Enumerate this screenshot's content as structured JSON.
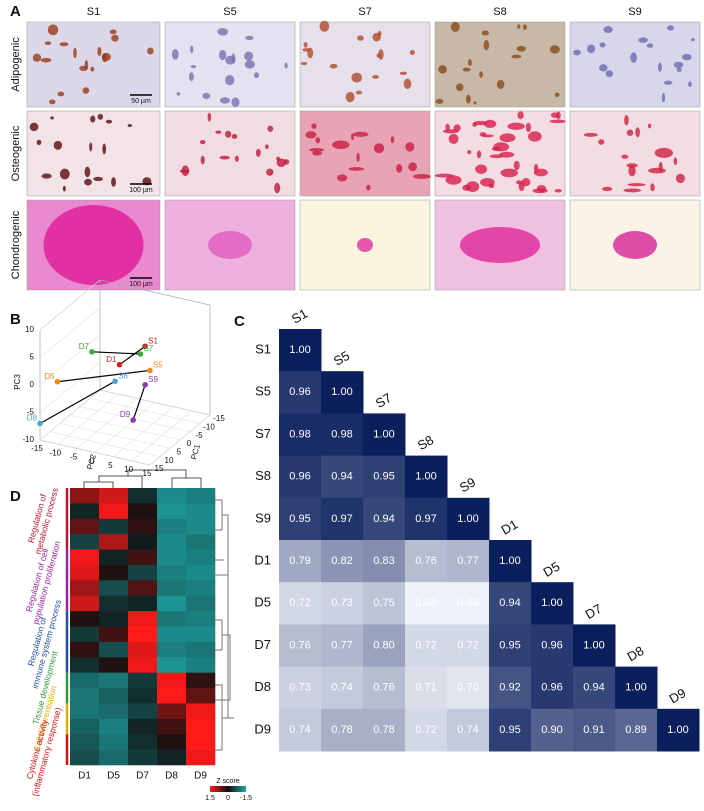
{
  "panel_a": {
    "label": "A",
    "columns": [
      "S1",
      "S5",
      "S7",
      "S8",
      "S9"
    ],
    "rows": [
      "Adipogenic",
      "Osteogenic",
      "Chondrogenic"
    ],
    "scale_bars": [
      "50 µm",
      "100 µm",
      "100 µm"
    ]
  },
  "panel_b": {
    "label": "B",
    "x_label": "PC2",
    "y_label": "PC1",
    "z_label": "PC3",
    "xlim": [
      -15,
      15
    ],
    "xticks": [
      -15,
      -10,
      -5,
      0,
      5,
      10,
      15
    ],
    "ylim": [
      -15,
      15
    ],
    "yticks": [
      15,
      10,
      5,
      0,
      -5,
      -10,
      -15
    ],
    "zlim": [
      -10,
      10
    ],
    "zticks": [
      10,
      5,
      0,
      -5,
      -10
    ],
    "points": [
      {
        "name": "S1",
        "color": "#d62020",
        "pc1": 0,
        "pc2": 5.5,
        "pc3": 5.6
      },
      {
        "name": "S5",
        "color": "#f08a1c",
        "pc1": 0,
        "pc2": 6.8,
        "pc3": 1.4
      },
      {
        "name": "S7",
        "color": "#3aa83a",
        "pc1": 0,
        "pc2": 4.2,
        "pc3": 4
      },
      {
        "name": "S8",
        "color": "#4aa3d8",
        "pc1": 0,
        "pc2": -2.7,
        "pc3": -2
      },
      {
        "name": "S9",
        "color": "#8a3cb0",
        "pc1": 0,
        "pc2": 5.5,
        "pc3": -1.4
      },
      {
        "name": "D1",
        "color": "#d62020",
        "pc1": 0,
        "pc2": -1.5,
        "pc3": 1.2
      },
      {
        "name": "D5",
        "color": "#f08a1c",
        "pc1": 9,
        "pc2": -13.5,
        "pc3": -1
      },
      {
        "name": "D7",
        "color": "#3aa83a",
        "pc1": 0,
        "pc2": -9,
        "pc3": 2.4
      },
      {
        "name": "D8",
        "color": "#4aa3d8",
        "pc1": 15,
        "pc2": -15,
        "pc3": -7
      },
      {
        "name": "D9",
        "color": "#8a3cb0",
        "pc1": 6,
        "pc2": 5.5,
        "pc3": -6
      }
    ]
  },
  "panel_c": {
    "label": "C",
    "labels": [
      "S1",
      "S5",
      "S7",
      "S8",
      "S9",
      "D1",
      "D5",
      "D7",
      "D8",
      "D9"
    ],
    "color_low": "#eef2f8",
    "color_high": "#0b1f5c",
    "values": [
      [
        1
      ],
      [
        0.96,
        1
      ],
      [
        0.98,
        0.98,
        1
      ],
      [
        0.96,
        0.94,
        0.95,
        1
      ],
      [
        0.95,
        0.97,
        0.94,
        0.97,
        1
      ],
      [
        0.79,
        0.82,
        0.83,
        0.76,
        0.77,
        1
      ],
      [
        0.72,
        0.73,
        0.75,
        0.68,
        0.68,
        0.94,
        1
      ],
      [
        0.76,
        0.77,
        0.8,
        0.72,
        0.72,
        0.95,
        0.96,
        1
      ],
      [
        0.73,
        0.74,
        0.76,
        0.71,
        0.7,
        0.92,
        0.96,
        0.94,
        1
      ],
      [
        0.74,
        0.78,
        0.78,
        0.72,
        0.74,
        0.95,
        0.9,
        0.91,
        0.89,
        1
      ]
    ],
    "value_labels": [
      [
        "1.00"
      ],
      [
        "0.96",
        "1.00"
      ],
      [
        "0.98",
        "0.98",
        "1.00"
      ],
      [
        "0.96",
        "0.94",
        "0.95",
        "1.00"
      ],
      [
        "0.95",
        "0.97",
        "0.94",
        "0.97",
        "1.00"
      ],
      [
        "0.79",
        "0.82",
        "0.83",
        "0.76",
        "0.77",
        "1.00"
      ],
      [
        "0.72",
        "0.73",
        "0.75",
        "0.68",
        "0.68",
        "0.94",
        "1.00"
      ],
      [
        "0.76",
        "0.77",
        "0.80",
        "0.72",
        "0.72",
        "0.95",
        "0.96",
        "1.00"
      ],
      [
        "0.73",
        "0.74",
        "0.76",
        "0.71",
        "0.70",
        "0.92",
        "0.96",
        "0.94",
        "1.00"
      ],
      [
        "0.74",
        "0.78",
        "0.78",
        "0.72",
        "0.74",
        "0.95",
        "0.90",
        "0.91",
        "0.89",
        "1.00"
      ]
    ]
  },
  "panel_d": {
    "label": "D",
    "columns": [
      "D1",
      "D5",
      "D7",
      "D8",
      "D9"
    ],
    "colors": {
      "high": "#ff1a1a",
      "mid": "#101010",
      "low": "#1fa8a8"
    },
    "legend": {
      "title": "Z score",
      "ticks": [
        1.5,
        0,
        -1.5
      ]
    },
    "groups": [
      {
        "lines": [
          "Regulation of",
          "metabolic process"
        ],
        "color": "#c8102e",
        "rows": [
          [
            0.8,
            1.2,
            -0.3,
            -1.2,
            -1.1
          ],
          [
            -0.2,
            1.4,
            0.1,
            -1.3,
            -1.2
          ],
          [
            0.5,
            -0.4,
            0.2,
            -1.1,
            -1.2
          ],
          [
            -0.5,
            1,
            -0.1,
            -1.2,
            -1
          ]
        ]
      },
      {
        "lines": [
          "Regulation of cell",
          "population proliferation"
        ],
        "color": "#a020a0",
        "rows": [
          [
            1.4,
            -0.2,
            0.3,
            -1.2,
            -1.1
          ],
          [
            1.3,
            0.1,
            -0.5,
            -1.1,
            -1.2
          ],
          [
            0.9,
            -0.6,
            0.4,
            -1,
            -1.1
          ],
          [
            1.2,
            -0.3,
            -0.2,
            -1.3,
            -1
          ]
        ]
      },
      {
        "lines": [
          "Regulation of",
          "immune system process"
        ],
        "color": "#1f4fa0",
        "rows": [
          [
            0.1,
            -0.2,
            1.4,
            -1,
            -1.1
          ],
          [
            -0.4,
            0.3,
            1.5,
            -1.2,
            -1.2
          ],
          [
            0.2,
            -0.6,
            1.3,
            -1.1,
            -1
          ],
          [
            -0.3,
            0.1,
            1.4,
            -1.3,
            -1.1
          ]
        ]
      },
      {
        "lines": [
          "Tissue development"
        ],
        "color": "#2e9b3a",
        "rows": [
          [
            -0.9,
            -1,
            -0.4,
            1.4,
            0.2
          ],
          [
            -1,
            -0.8,
            -0.3,
            1.5,
            0.5
          ]
        ]
      },
      {
        "lines": [
          "Cell differentiation"
        ],
        "color": "#e0b000",
        "rows": [
          [
            -1,
            -0.9,
            -0.5,
            0.6,
            1.4
          ],
          [
            -0.8,
            -1.1,
            -0.2,
            0.3,
            1.5
          ]
        ]
      },
      {
        "lines": [
          "Cytokine activity",
          "(inflammatory response)"
        ],
        "color": "#e01010",
        "rows": [
          [
            -0.7,
            -1,
            -0.3,
            0.1,
            1.5
          ],
          [
            -0.6,
            -0.9,
            -0.4,
            -0.2,
            1.4
          ]
        ]
      }
    ]
  }
}
